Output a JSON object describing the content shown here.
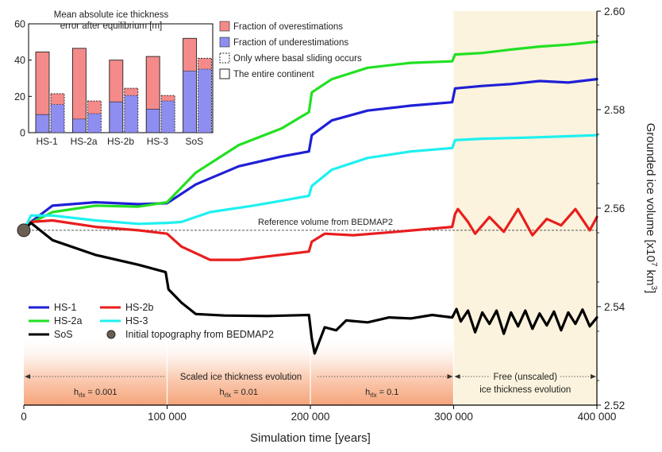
{
  "chart_data": [
    {
      "type": "line",
      "title": "",
      "xlabel": "Simulation time [years]",
      "ylabel": "Grounded ice volume [x10",
      "ylabel_sup1": "7",
      "ylabel_mid": " km",
      "ylabel_sup2": "3",
      "ylabel_end": "]",
      "xlim": [
        0,
        400000
      ],
      "ylim": [
        2.52,
        2.6
      ],
      "x_ticks": [
        0,
        100000,
        200000,
        300000,
        400000
      ],
      "x_tick_labels": [
        "0",
        "100 000",
        "200 000",
        "300 000",
        "400 000"
      ],
      "y_ticks": [
        2.52,
        2.54,
        2.56,
        2.58,
        2.6
      ],
      "y_tick_labels": [
        "2.52",
        "2.54",
        "2.56",
        "2.58",
        "2.60"
      ],
      "y_axis_side": "right",
      "grid": false,
      "legend_position": "bottom-left",
      "reference": {
        "label": "Reference volume from BEDMAP2",
        "value": 2.5555
      },
      "initial_point": {
        "label": "Initial topography from BEDMAP2",
        "x": 0,
        "y": 2.5555,
        "color": "#6b5f53"
      },
      "phases": [
        {
          "label": "h_rlx = 0.001",
          "sub": "rlx",
          "value": "= 0.001",
          "x0": 0,
          "x1": 100000
        },
        {
          "label": "h_rlx = 0.01",
          "sub": "rlx",
          "value": "= 0.01",
          "x0": 100000,
          "x1": 200000
        },
        {
          "label": "h_rlx = 0.1",
          "sub": "rlx",
          "value": "= 0.1",
          "x0": 200000,
          "x1": 300000
        }
      ],
      "scaled_label": "Scaled ice thickness evolution",
      "free_label_lines": [
        "Free (unscaled)",
        "ice thickness evolution"
      ],
      "free_region": {
        "x0": 300000,
        "x1": 400000,
        "color": "#fbf3dd"
      },
      "series": [
        {
          "name": "HS-1",
          "color": "#1f1fd6",
          "x": [
            0,
            5000,
            20000,
            50000,
            80000,
            100000,
            120000,
            150000,
            180000,
            199000,
            201000,
            215000,
            240000,
            270000,
            299000,
            301000,
            320000,
            340000,
            360000,
            380000,
            400000
          ],
          "y": [
            2.5555,
            2.5572,
            2.5605,
            2.5612,
            2.5608,
            2.561,
            2.5648,
            2.5685,
            2.5705,
            2.5715,
            2.5748,
            2.5778,
            2.5798,
            2.5808,
            2.5815,
            2.5843,
            2.5848,
            2.5852,
            2.5858,
            2.5855,
            2.5862
          ]
        },
        {
          "name": "HS-2a",
          "color": "#22e022",
          "x": [
            0,
            5000,
            20000,
            50000,
            80000,
            100000,
            120000,
            150000,
            180000,
            199000,
            201000,
            215000,
            240000,
            270000,
            299000,
            301000,
            320000,
            340000,
            360000,
            380000,
            400000
          ],
          "y": [
            2.5555,
            2.557,
            2.5592,
            2.5605,
            2.5603,
            2.5612,
            2.5672,
            2.5728,
            2.5762,
            2.5795,
            2.5835,
            2.5862,
            2.5885,
            2.5895,
            2.5898,
            2.5912,
            2.5915,
            2.5922,
            2.5928,
            2.5932,
            2.5938
          ]
        },
        {
          "name": "HS-2b",
          "color": "#e81e1e",
          "x": [
            0,
            5000,
            20000,
            50000,
            80000,
            100000,
            110000,
            130000,
            150000,
            170000,
            199000,
            201000,
            210000,
            230000,
            260000,
            299000,
            301000,
            303000,
            310000,
            315000,
            325000,
            335000,
            345000,
            355000,
            365000,
            375000,
            385000,
            395000,
            400000
          ],
          "y": [
            2.5555,
            2.5572,
            2.5575,
            2.5562,
            2.5555,
            2.5548,
            2.5522,
            2.5495,
            2.5495,
            2.5502,
            2.5512,
            2.5532,
            2.5548,
            2.5545,
            2.5552,
            2.5562,
            2.5588,
            2.5598,
            2.5572,
            2.5548,
            2.5582,
            2.5552,
            2.5598,
            2.5545,
            2.5578,
            2.5565,
            2.5598,
            2.5555,
            2.5582
          ]
        },
        {
          "name": "HS-3",
          "color": "#1ff0f0",
          "x": [
            0,
            5000,
            20000,
            50000,
            80000,
            100000,
            110000,
            130000,
            160000,
            180000,
            199000,
            201000,
            215000,
            240000,
            270000,
            299000,
            301000,
            320000,
            350000,
            380000,
            400000
          ],
          "y": [
            2.5555,
            2.5585,
            2.5585,
            2.5575,
            2.5568,
            2.557,
            2.5572,
            2.5592,
            2.5605,
            2.5615,
            2.5625,
            2.5645,
            2.5678,
            2.5702,
            2.5715,
            2.5722,
            2.5738,
            2.5741,
            2.5743,
            2.5746,
            2.5748
          ]
        },
        {
          "name": "SoS",
          "color": "#000000",
          "x": [
            0,
            5000,
            20000,
            50000,
            80000,
            99000,
            101000,
            110000,
            120000,
            140000,
            170000,
            199000,
            201000,
            203000,
            210000,
            218000,
            225000,
            240000,
            255000,
            270000,
            285000,
            299000,
            302000,
            305000,
            310000,
            315000,
            320000,
            325000,
            330000,
            335000,
            340000,
            345000,
            350000,
            355000,
            360000,
            365000,
            370000,
            375000,
            380000,
            385000,
            390000,
            395000,
            400000
          ],
          "y": [
            2.5555,
            2.557,
            2.5535,
            2.5505,
            2.5485,
            2.547,
            2.5435,
            2.5408,
            2.5385,
            2.5382,
            2.5381,
            2.5383,
            2.5335,
            2.5305,
            2.5358,
            2.5352,
            2.5372,
            2.5368,
            2.5378,
            2.5376,
            2.5383,
            2.5378,
            2.5395,
            2.537,
            2.5392,
            2.5348,
            2.5388,
            2.5365,
            2.5392,
            2.5345,
            2.5388,
            2.536,
            2.5392,
            2.5355,
            2.5386,
            2.5362,
            2.539,
            2.5352,
            2.5388,
            2.5365,
            2.5394,
            2.536,
            2.5378
          ]
        }
      ],
      "legend": [
        {
          "name": "HS-1",
          "color": "#1f1fd6",
          "marker": "line"
        },
        {
          "name": "HS-2b",
          "color": "#e81e1e",
          "marker": "line"
        },
        {
          "name": "HS-2a",
          "color": "#22e022",
          "marker": "line"
        },
        {
          "name": "HS-3",
          "color": "#1ff0f0",
          "marker": "line"
        },
        {
          "name": "SoS",
          "color": "#000000",
          "marker": "line"
        },
        {
          "name": "Initial topography from BEDMAP2",
          "color": "#6b5f53",
          "marker": "circle"
        }
      ]
    },
    {
      "type": "bar",
      "title_lines": [
        "Mean absolute ice thickness",
        "error after equilibrium [m]"
      ],
      "categories": [
        "HS-1",
        "HS-2a",
        "HS-2b",
        "HS-3",
        "SoS"
      ],
      "ylim": [
        0,
        60
      ],
      "y_ticks": [
        0,
        20,
        40,
        60
      ],
      "grid": false,
      "colors": {
        "over": "#f48a8a",
        "under": "#8e8ef0"
      },
      "series": [
        {
          "name": "The entire continent",
          "total": [
            44.5,
            46.5,
            40.0,
            42.0,
            52.0
          ],
          "underestimation": [
            10.0,
            7.5,
            17.0,
            13.0,
            34.0
          ]
        },
        {
          "name": "Only where basal sliding occurs",
          "total": [
            21.5,
            17.5,
            24.5,
            20.5,
            41.0
          ],
          "underestimation": [
            15.5,
            10.5,
            20.5,
            17.5,
            35.0
          ]
        }
      ],
      "legend": [
        {
          "name": "Fraction of overestimations",
          "color": "#f48a8a",
          "marker": "fill"
        },
        {
          "name": "Fraction of underestimations",
          "color": "#8e8ef0",
          "marker": "fill"
        },
        {
          "name": "Only where basal sliding occurs",
          "marker": "dashed"
        },
        {
          "name": "The entire continent",
          "marker": "solid"
        }
      ]
    }
  ]
}
